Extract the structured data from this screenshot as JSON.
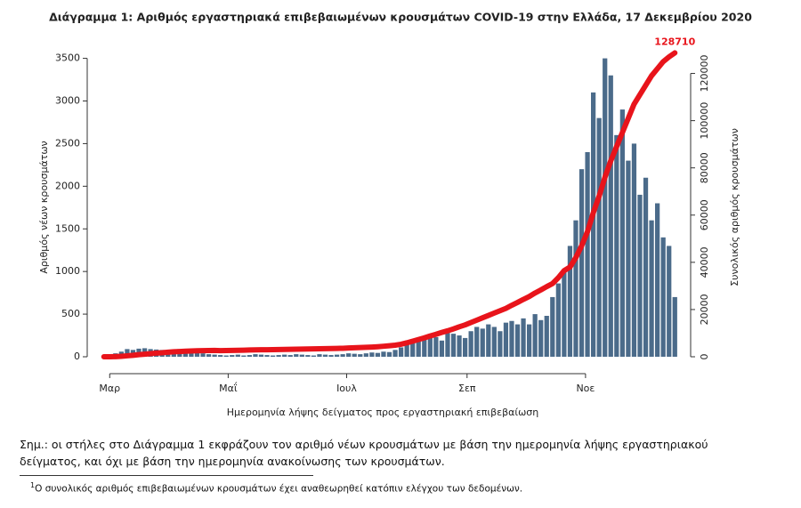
{
  "chart_data": {
    "type": "bar",
    "title": "Διάγραμμα 1: Αριθμός εργαστηριακά επιβεβαιωμένων κρουσμάτων COVID-19 στην Ελλάδα, 17 Δεκεμβρίου 2020",
    "x_label": "Ημερομηνία λήψης δείγματος προς εργαστηριακή επιβεβαίωση",
    "y_label": "Αριθμός νέων κρουσμάτων",
    "y2_label": "Συνολικός αριθμός κρουσμάτων",
    "x": [
      58,
      61,
      64,
      67,
      70,
      73,
      76,
      79,
      82,
      85,
      88,
      91,
      94,
      97,
      100,
      103,
      106,
      109,
      112,
      115,
      118,
      121,
      124,
      127,
      130,
      133,
      136,
      139,
      142,
      145,
      148,
      151,
      154,
      157,
      160,
      163,
      166,
      169,
      172,
      175,
      178,
      181,
      184,
      187,
      190,
      193,
      196,
      199,
      202,
      205,
      208,
      211,
      214,
      217,
      220,
      223,
      226,
      229,
      232,
      235,
      238,
      241,
      244,
      247,
      250,
      253,
      256,
      259,
      262,
      265,
      268,
      271,
      274,
      277,
      280,
      283,
      286,
      289,
      292,
      295,
      298,
      301,
      304,
      307,
      310,
      313,
      316,
      319,
      322,
      325,
      328,
      331,
      334,
      337,
      340,
      343,
      346,
      349,
      352
    ],
    "series": [
      {
        "type": "bar",
        "color": "#4b6b8a",
        "values": [
          5,
          20,
          40,
          60,
          90,
          80,
          95,
          100,
          90,
          85,
          80,
          70,
          60,
          90,
          70,
          60,
          50,
          40,
          30,
          25,
          20,
          15,
          20,
          25,
          15,
          20,
          30,
          25,
          20,
          15,
          20,
          25,
          20,
          30,
          25,
          20,
          15,
          30,
          25,
          20,
          25,
          30,
          40,
          35,
          30,
          40,
          50,
          45,
          60,
          55,
          80,
          110,
          150,
          180,
          200,
          220,
          250,
          230,
          190,
          280,
          270,
          250,
          220,
          300,
          350,
          330,
          380,
          350,
          300,
          400,
          420,
          380,
          450,
          380,
          500,
          430,
          480,
          700,
          860,
          1000,
          1300,
          1600,
          2200,
          2400,
          3100,
          2800,
          3500,
          3300,
          2600,
          2900,
          2300,
          2500,
          1900,
          2100,
          1600,
          1800,
          1400,
          1300,
          700
        ]
      },
      {
        "type": "line",
        "axis": "y2",
        "color": "#e8141b",
        "values": [
          3,
          5,
          40,
          190,
          400,
          600,
          900,
          1100,
          1300,
          1550,
          1700,
          1950,
          2100,
          2200,
          2350,
          2450,
          2550,
          2600,
          2650,
          2700,
          2600,
          2650,
          2700,
          2750,
          2800,
          2850,
          2900,
          2950,
          2950,
          3000,
          3050,
          3100,
          3150,
          3200,
          3250,
          3300,
          3350,
          3400,
          3450,
          3500,
          3550,
          3600,
          3700,
          3800,
          3900,
          4000,
          4100,
          4250,
          4450,
          4650,
          4900,
          5300,
          5900,
          6600,
          7300,
          8000,
          8800,
          9500,
          10300,
          11000,
          11800,
          12700,
          13500,
          14500,
          15500,
          16500,
          17500,
          18500,
          19500,
          20500,
          21800,
          23000,
          24300,
          25500,
          27000,
          28300,
          29700,
          31000,
          33500,
          36500,
          38000,
          42000,
          47000,
          53000,
          61000,
          68000,
          76000,
          83000,
          89000,
          95000,
          101000,
          107000,
          111000,
          115000,
          119000,
          122000,
          125000,
          127000,
          128710
        ]
      }
    ],
    "annotations": [
      {
        "x": 352,
        "y": 128710,
        "axis": "y2",
        "text": "128710"
      }
    ],
    "xlim": [
      54,
      356
    ],
    "xticks": [
      {
        "value": 61,
        "label": "Μαρ"
      },
      {
        "value": 122,
        "label": "Μαΐ"
      },
      {
        "value": 183,
        "label": "Ιουλ"
      },
      {
        "value": 245,
        "label": "Σεπ"
      },
      {
        "value": 306,
        "label": "Νοε"
      }
    ],
    "ylim": [
      0,
      3600
    ],
    "yticks": [
      0,
      500,
      1000,
      1500,
      2000,
      2500,
      3000,
      3500
    ],
    "y2lim": [
      0,
      130000
    ],
    "y2ticks": [
      0,
      20000,
      40000,
      60000,
      80000,
      100000,
      120000
    ]
  },
  "notes": {
    "text": "Σημ.: οι στήλες στο Διάγραμμα 1 εκφράζουν τον αριθμό νέων κρουσμάτων με βάση την ημερομηνία λήψης εργαστηριακού δείγματος, και όχι με βάση την ημερομηνία ανακοίνωσης των κρουσμάτων.",
    "footnote_mark": "1",
    "footnote": "Ο συνολικός αριθμός επιβεβαιωμένων κρουσμάτων έχει αναθεωρηθεί κατόπιν ελέγχου των δεδομένων."
  }
}
